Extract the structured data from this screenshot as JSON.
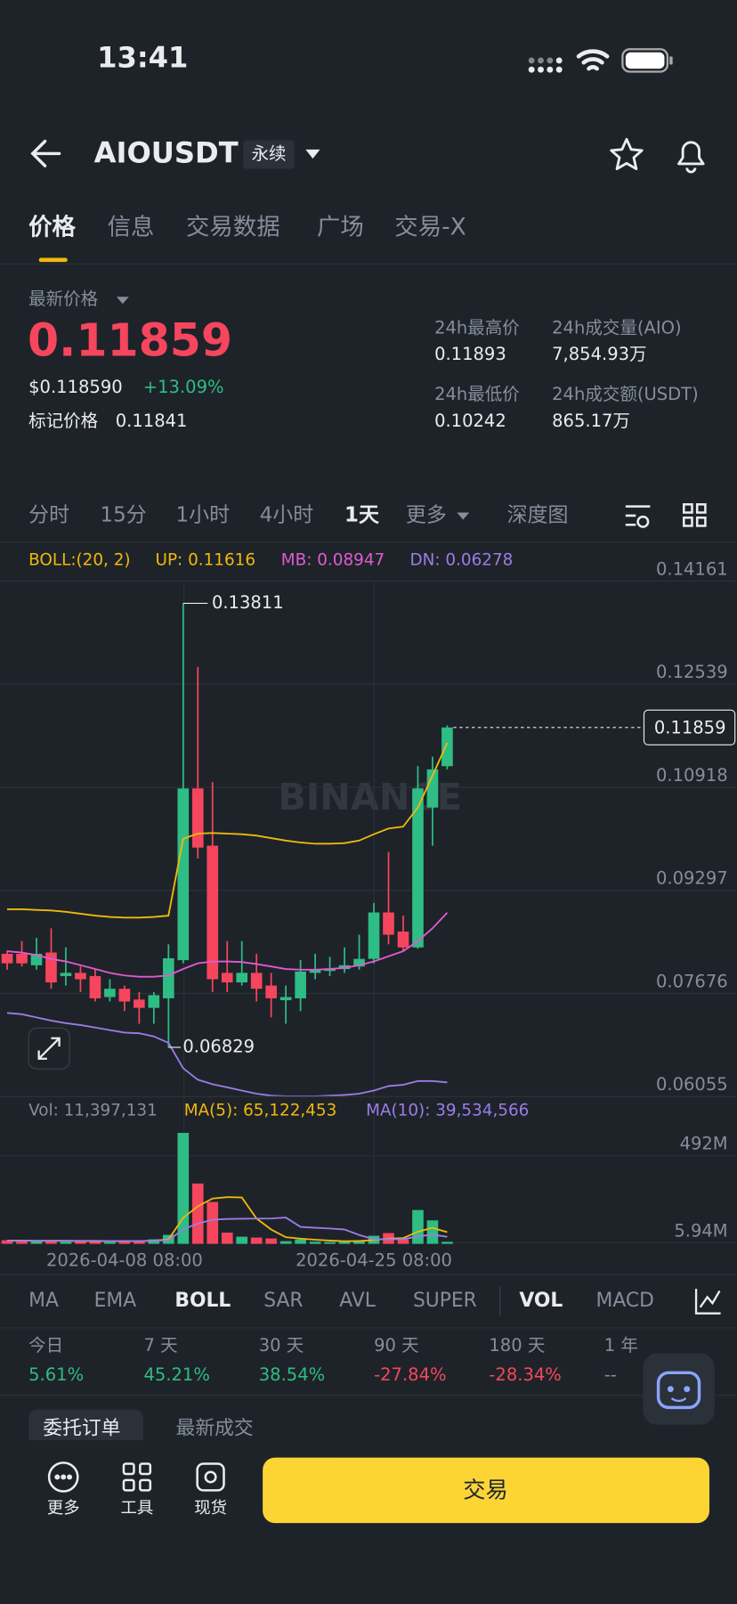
{
  "status": {
    "time": "13:41"
  },
  "header": {
    "symbol": "AIOUSDT",
    "tag": "永续"
  },
  "tabs": [
    "价格",
    "信息",
    "交易数据",
    "广场",
    "交易-X"
  ],
  "price": {
    "label": "最新价格",
    "last": "0.11859",
    "usd": "$0.118590",
    "change": "+13.09%",
    "mark_label": "标记价格",
    "mark": "0.11841"
  },
  "stats": [
    {
      "label": "24h最高价",
      "value": "0.11893"
    },
    {
      "label": "24h成交量(AIO)",
      "value": "7,854.93万"
    },
    {
      "label": "24h最低价",
      "value": "0.10242"
    },
    {
      "label": "24h成交额(USDT)",
      "value": "865.17万"
    }
  ],
  "intervals": [
    "分时",
    "15分",
    "1小时",
    "4小时",
    "1天",
    "更多",
    "深度图"
  ],
  "chart_data": {
    "type": "candlestick",
    "watermark": "BINANCE",
    "up_color": "#2ebd85",
    "down_color": "#f6465d",
    "legend": [
      {
        "text": "BOLL:(20, 2)",
        "color": "#f0b90b"
      },
      {
        "text": "UP: 0.11616",
        "color": "#f0b90b"
      },
      {
        "text": "MB: 0.08947",
        "color": "#e05bd0"
      },
      {
        "text": "DN: 0.06278",
        "color": "#9c7ce6"
      }
    ],
    "categories": [
      null,
      null,
      null,
      null,
      null,
      null,
      null,
      null,
      "2026-04-08 08:00",
      null,
      null,
      null,
      null,
      null,
      null,
      null,
      null,
      null,
      null,
      null,
      null,
      null,
      null,
      null,
      null,
      "2026-04-25 08:00",
      null,
      null,
      null,
      null,
      null
    ],
    "open": [
      0.083,
      0.083,
      0.0812,
      0.0832,
      0.0795,
      0.08,
      0.0795,
      0.0762,
      0.0775,
      0.0758,
      0.0745,
      0.076,
      0.082,
      0.109,
      0.1,
      0.08,
      0.0785,
      0.08,
      0.078,
      0.0757,
      0.076,
      0.08,
      0.0803,
      0.0806,
      0.081,
      0.0822,
      0.0895,
      0.0865,
      0.084,
      0.106,
      0.1125
    ],
    "high": [
      0.0835,
      0.085,
      0.0855,
      0.087,
      0.084,
      0.081,
      0.0805,
      0.079,
      0.078,
      0.077,
      0.077,
      0.0845,
      0.13811,
      0.1281,
      0.11,
      0.085,
      0.085,
      0.083,
      0.08,
      0.078,
      0.082,
      0.083,
      0.0825,
      0.084,
      0.086,
      0.091,
      0.099,
      0.089,
      0.1125,
      0.114,
      0.11893
    ],
    "low": [
      0.0805,
      0.081,
      0.0805,
      0.0775,
      0.078,
      0.077,
      0.0755,
      0.0755,
      0.074,
      0.072,
      0.072,
      0.06829,
      0.0815,
      0.098,
      0.077,
      0.077,
      0.078,
      0.0755,
      0.073,
      0.072,
      0.074,
      0.079,
      0.0795,
      0.08,
      0.0805,
      0.0815,
      0.0845,
      0.0835,
      0.0838,
      0.1,
      0.112
    ],
    "close": [
      0.0815,
      0.0815,
      0.083,
      0.0785,
      0.08,
      0.079,
      0.076,
      0.0775,
      0.0755,
      0.0745,
      0.0765,
      0.0823,
      0.109,
      0.0997,
      0.079,
      0.0785,
      0.08,
      0.0775,
      0.076,
      0.0762,
      0.0802,
      0.0805,
      0.0807,
      0.0812,
      0.0822,
      0.0895,
      0.086,
      0.084,
      0.109,
      0.112,
      0.11859
    ],
    "lines": [
      {
        "color": "#f0b90b",
        "values": [
          0.09,
          0.09,
          0.0899,
          0.0898,
          0.0896,
          0.0893,
          0.089,
          0.0888,
          0.0887,
          0.0887,
          0.0888,
          0.089,
          0.1011,
          0.1019,
          0.102,
          0.1019,
          0.1018,
          0.1016,
          0.1012,
          0.1008,
          0.1005,
          0.1003,
          0.1003,
          0.1004,
          0.1008,
          0.1018,
          0.1027,
          0.103,
          0.106,
          0.111,
          0.11616
        ]
      },
      {
        "color": "#e05bd0",
        "values": [
          0.0834,
          0.0832,
          0.0828,
          0.0822,
          0.0818,
          0.0812,
          0.0806,
          0.08,
          0.0796,
          0.0794,
          0.0794,
          0.0796,
          0.0806,
          0.0815,
          0.0818,
          0.0818,
          0.0817,
          0.0814,
          0.081,
          0.0806,
          0.0805,
          0.0805,
          0.0806,
          0.0808,
          0.0812,
          0.0818,
          0.0826,
          0.0834,
          0.085,
          0.087,
          0.08947
        ]
      },
      {
        "color": "#9c7ce6",
        "values": [
          0.0737,
          0.0735,
          0.073,
          0.0725,
          0.0721,
          0.0718,
          0.0714,
          0.071,
          0.0706,
          0.0705,
          0.07,
          0.069,
          0.065,
          0.0632,
          0.0625,
          0.062,
          0.0615,
          0.061,
          0.0607,
          0.0606,
          0.0606,
          0.0606,
          0.0607,
          0.0608,
          0.061,
          0.0615,
          0.0622,
          0.0624,
          0.063,
          0.063,
          0.06278
        ]
      }
    ],
    "ylim": [
      0.06055,
      0.14161
    ],
    "yticks": [
      0.14161,
      0.12539,
      0.10918,
      0.09297,
      0.07676,
      0.06055
    ],
    "grid": true,
    "volume": {
      "legend": [
        {
          "text": "Vol: 11,397,131",
          "color": "#848e9c"
        },
        {
          "text": "MA(5): 65,122,453",
          "color": "#f0b90b"
        },
        {
          "text": "MA(10): 39,534,566",
          "color": "#9c7ce6"
        }
      ],
      "values": [
        20000000,
        15000000,
        18000000,
        22000000,
        12000000,
        14000000,
        20000000,
        10000000,
        15000000,
        18000000,
        25000000,
        50000000,
        620000000,
        337000000,
        234000000,
        63000000,
        40000000,
        35000000,
        30000000,
        15000000,
        25000000,
        12000000,
        10000000,
        12000000,
        20000000,
        45000000,
        60000000,
        25000000,
        189000000,
        131000000,
        11397131
      ],
      "lines": [
        {
          "color": "#f0b90b",
          "values": [
            18000000,
            18000000,
            17000000,
            17000000,
            17000000,
            16000000,
            16000000,
            15000000,
            15000000,
            15000000,
            18000000,
            24000000,
            146000000,
            210000000,
            253000000,
            261000000,
            259000000,
            142000000,
            80000000,
            37000000,
            29000000,
            23000000,
            18000000,
            15000000,
            16000000,
            21000000,
            29000000,
            32000000,
            68000000,
            90000000,
            65122453
          ]
        },
        {
          "color": "#9c7ce6",
          "values": [
            17000000,
            17000000,
            17000000,
            17000000,
            17000000,
            17000000,
            17000000,
            16000000,
            16000000,
            16000000,
            17000000,
            20000000,
            81000000,
            113000000,
            135000000,
            139000000,
            140000000,
            141000000,
            142000000,
            147000000,
            95000000,
            90000000,
            86000000,
            80000000,
            50000000,
            25000000,
            26000000,
            26000000,
            41000000,
            52000000,
            39534566
          ]
        }
      ],
      "ylim": [
        0,
        640000000
      ],
      "yticks": [
        {
          "value": 492000000,
          "label": "492M"
        },
        {
          "value": 5940000,
          "label": "5.94M"
        }
      ]
    }
  },
  "indicators": {
    "items": [
      "MA",
      "EMA",
      "BOLL",
      "SAR",
      "AVL",
      "SUPER",
      "VOL",
      "MACD"
    ],
    "active": [
      "BOLL",
      "VOL"
    ]
  },
  "performance": [
    {
      "label": "今日",
      "value": "5.61%"
    },
    {
      "label": "7 天",
      "value": "45.21%"
    },
    {
      "label": "30 天",
      "value": "38.54%"
    },
    {
      "label": "90 天",
      "value": "-27.84%"
    },
    {
      "label": "180 天",
      "value": "-28.34%"
    },
    {
      "label": "1 年",
      "value": "--"
    }
  ],
  "order_tabs": [
    "委托订单",
    "最新成交"
  ],
  "bottom_nav": [
    "更多",
    "工具",
    "现货"
  ],
  "trade_button": "交易"
}
